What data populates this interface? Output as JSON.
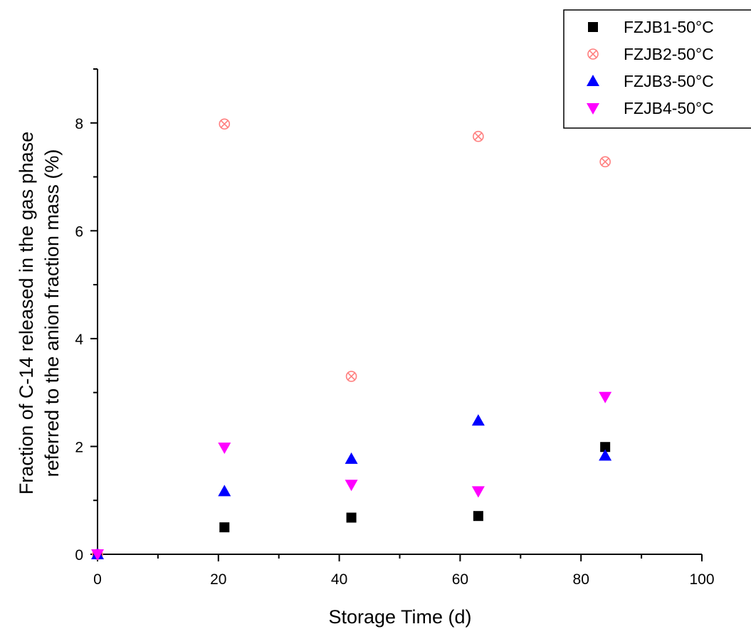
{
  "chart_data": {
    "type": "scatter",
    "title": "",
    "xlabel": "Storage Time (d)",
    "ylabel_lines": [
      "Fraction of C-14 released in the gas phase",
      "referred to the anion fraction mass (%)"
    ],
    "xlim": [
      0,
      100
    ],
    "ylim": [
      0,
      9
    ],
    "x_ticks": [
      0,
      20,
      40,
      60,
      80,
      100
    ],
    "y_ticks": [
      0,
      2,
      4,
      6,
      8
    ],
    "grid": false,
    "legend_position": "top-right",
    "series": [
      {
        "name": "FZJB1-50°C",
        "marker": "square",
        "color": "#000000",
        "points": [
          {
            "x": 0,
            "y": 0
          },
          {
            "x": 21,
            "y": 0.5
          },
          {
            "x": 42,
            "y": 0.68
          },
          {
            "x": 63,
            "y": 0.71
          },
          {
            "x": 84,
            "y": 1.99
          }
        ]
      },
      {
        "name": "FZJB2-50°C",
        "marker": "circle-x",
        "color": "#ff7f7f",
        "points": [
          {
            "x": 0,
            "y": 0
          },
          {
            "x": 21,
            "y": 7.98
          },
          {
            "x": 42,
            "y": 3.3
          },
          {
            "x": 63,
            "y": 7.75
          },
          {
            "x": 84,
            "y": 7.28
          }
        ]
      },
      {
        "name": "FZJB3-50°C",
        "marker": "triangle-up",
        "color": "#0000ff",
        "points": [
          {
            "x": 0,
            "y": 0
          },
          {
            "x": 21,
            "y": 1.17
          },
          {
            "x": 42,
            "y": 1.77
          },
          {
            "x": 63,
            "y": 2.48
          },
          {
            "x": 84,
            "y": 1.83
          }
        ]
      },
      {
        "name": "FZJB4-50°C",
        "marker": "triangle-down",
        "color": "#ff00ff",
        "points": [
          {
            "x": 0,
            "y": 0
          },
          {
            "x": 21,
            "y": 1.98
          },
          {
            "x": 42,
            "y": 1.29
          },
          {
            "x": 63,
            "y": 1.17
          },
          {
            "x": 84,
            "y": 2.92
          }
        ]
      }
    ]
  }
}
